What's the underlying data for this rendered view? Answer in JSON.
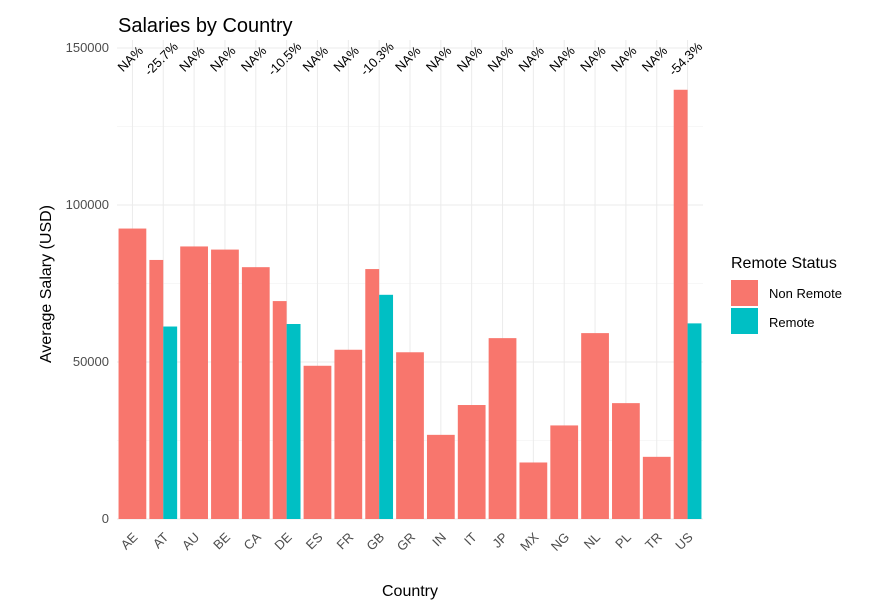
{
  "chart_data": {
    "type": "bar",
    "title": "Salaries by Country",
    "xlabel": "Country",
    "ylabel": "Average Salary (USD)",
    "ylim": [
      0,
      150000
    ],
    "yticks": [
      0,
      50000,
      100000,
      150000
    ],
    "ytick_labels": [
      "0",
      "50000",
      "100000",
      "150000"
    ],
    "grid": true,
    "legend": {
      "title": "Remote Status",
      "placement": "right",
      "entries": [
        {
          "name": "Non Remote",
          "color": "#F8766D"
        },
        {
          "name": "Remote",
          "color": "#00BFC4"
        }
      ]
    },
    "categories": [
      "AE",
      "AT",
      "AU",
      "BE",
      "CA",
      "DE",
      "ES",
      "FR",
      "GB",
      "GR",
      "IN",
      "IT",
      "JP",
      "MX",
      "NG",
      "NL",
      "PL",
      "TR",
      "US"
    ],
    "series": [
      {
        "name": "Non Remote",
        "color": "#F8766D",
        "values": [
          92500,
          82500,
          86800,
          85800,
          80200,
          69400,
          48800,
          53900,
          79600,
          53100,
          26800,
          36300,
          57600,
          18000,
          29800,
          59200,
          36900,
          19800,
          136700
        ]
      },
      {
        "name": "Remote",
        "color": "#00BFC4",
        "values": [
          null,
          61300,
          null,
          null,
          null,
          62100,
          null,
          null,
          71400,
          null,
          null,
          null,
          null,
          null,
          null,
          null,
          null,
          null,
          62300
        ]
      }
    ],
    "annotations": [
      "NA%",
      "-25.7%",
      "NA%",
      "NA%",
      "NA%",
      "-10.5%",
      "NA%",
      "NA%",
      "-10.3%",
      "NA%",
      "NA%",
      "NA%",
      "NA%",
      "NA%",
      "NA%",
      "NA%",
      "NA%",
      "NA%",
      "-54.3%"
    ]
  }
}
